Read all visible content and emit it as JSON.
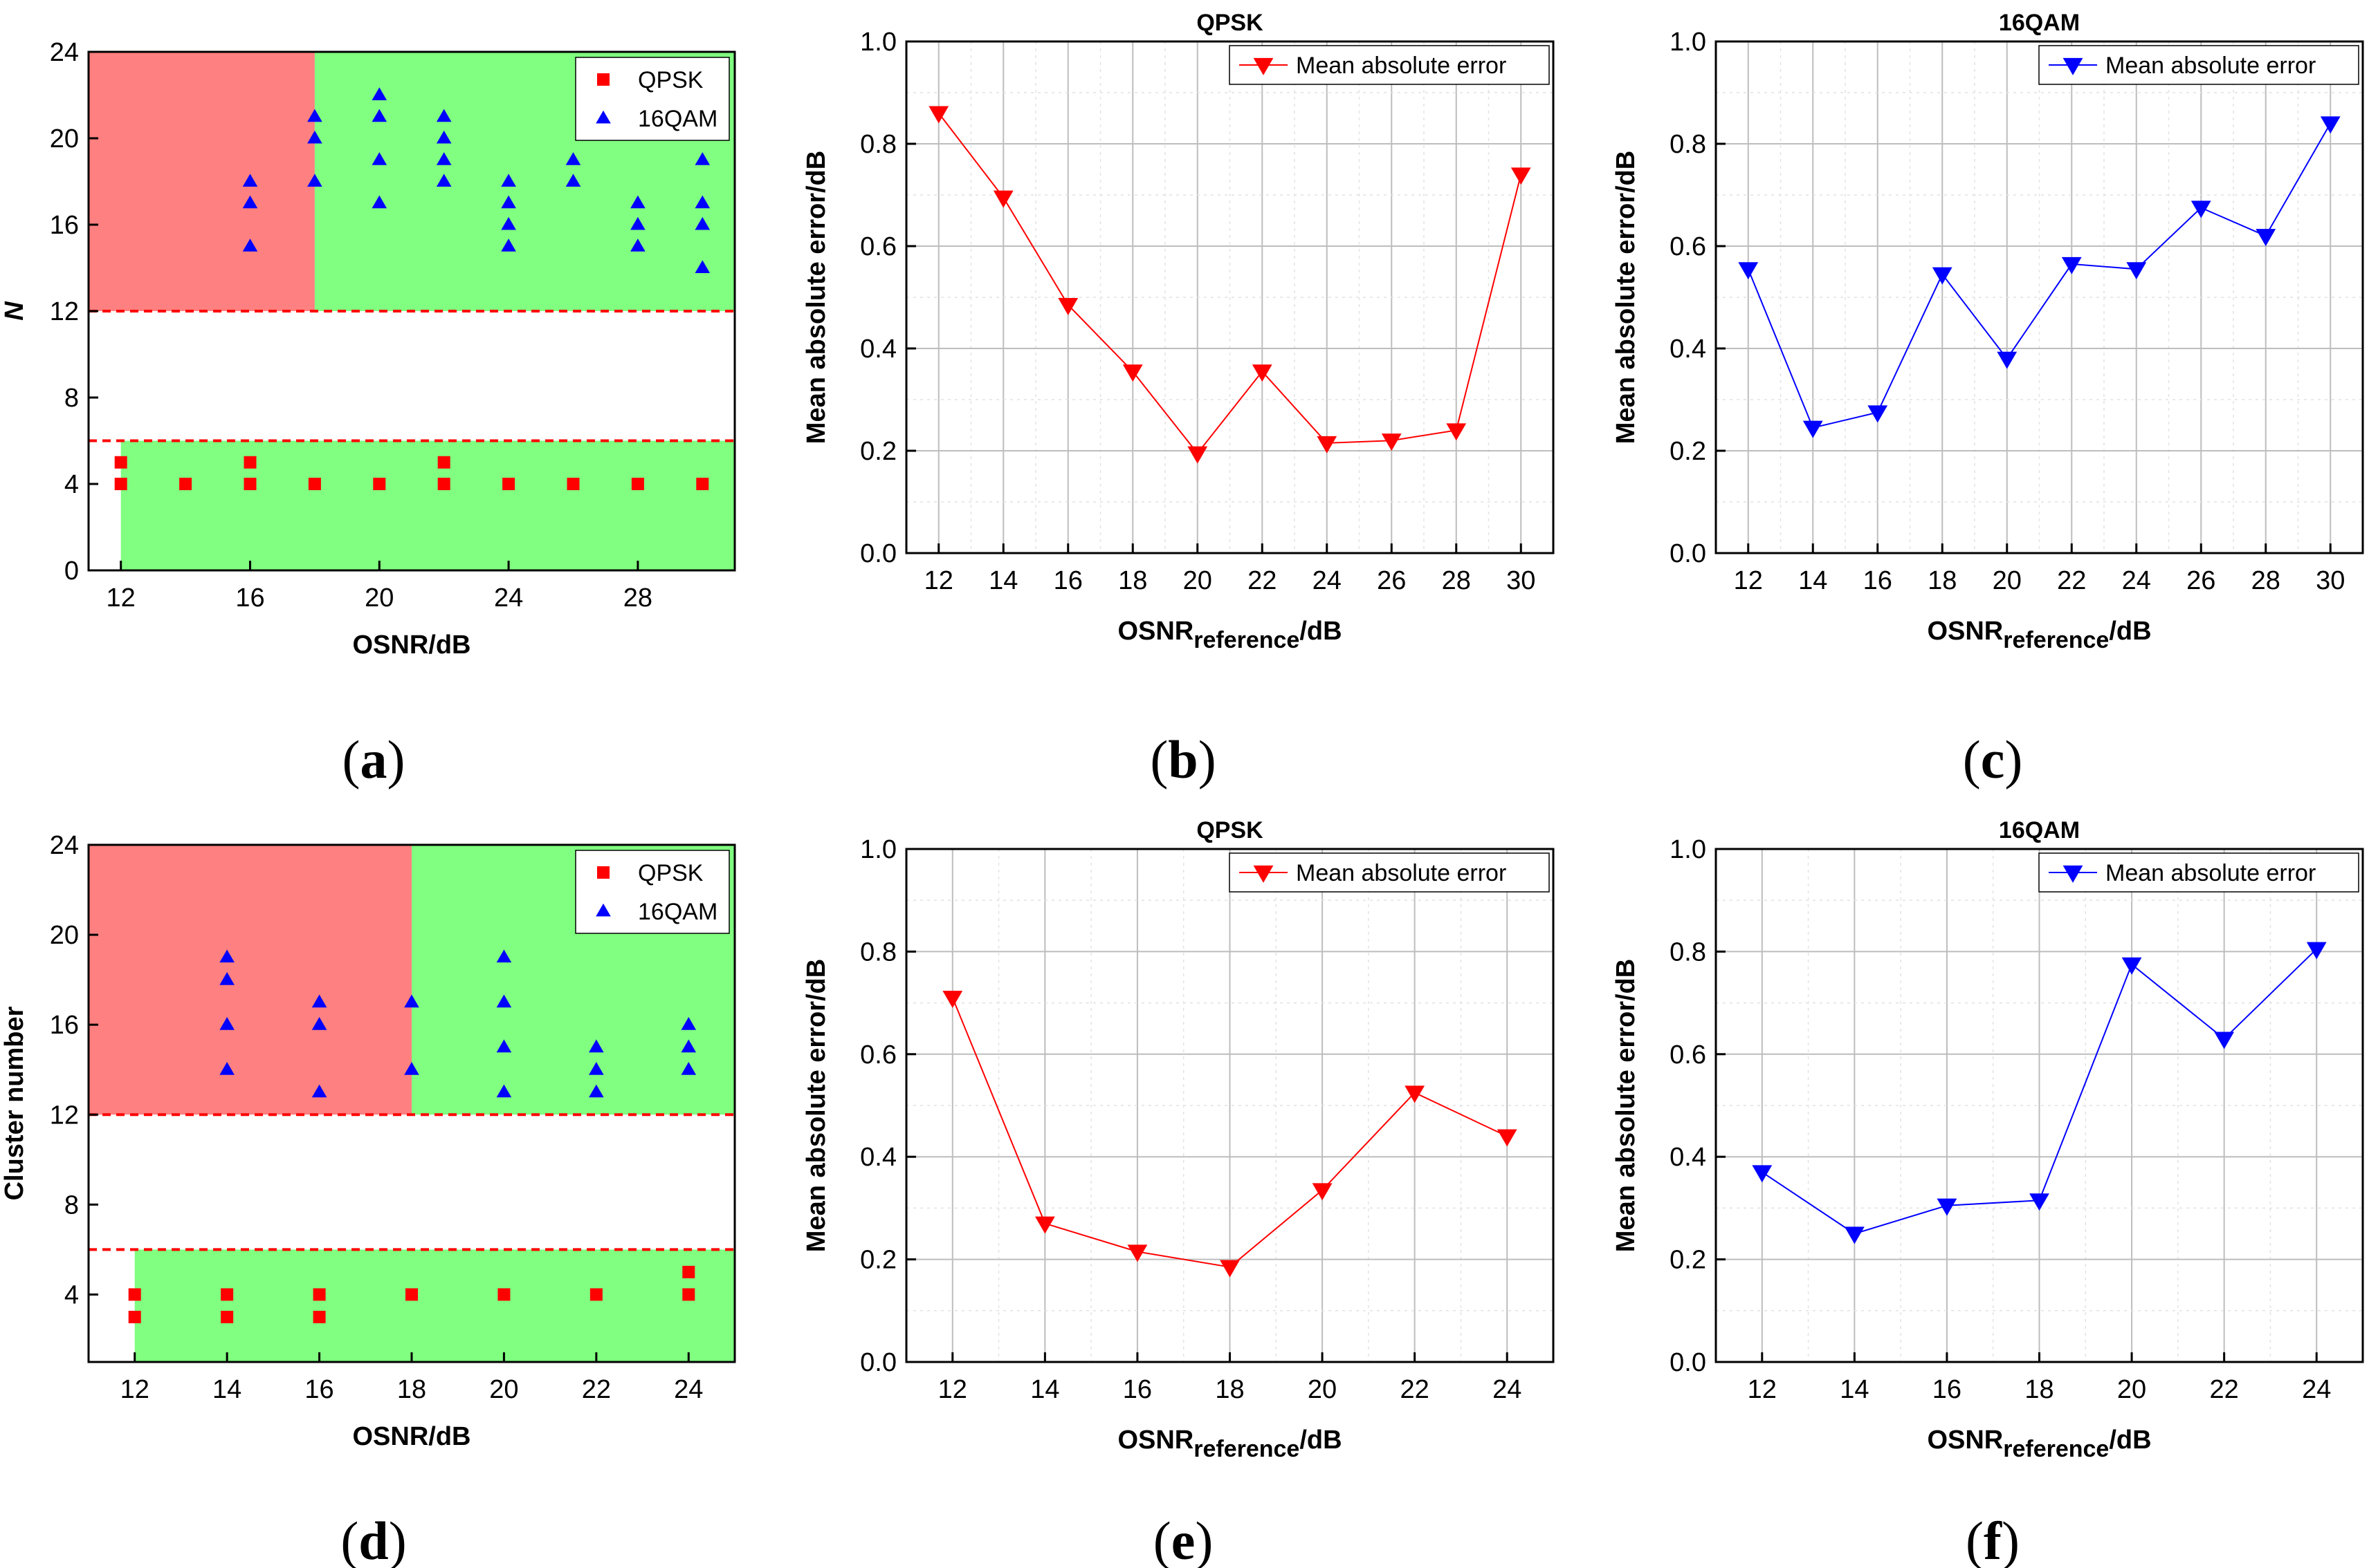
{
  "chart_data": [
    {
      "id": "a",
      "type": "scatter",
      "panel_label": "a",
      "xlabel": "OSNR/dB",
      "ylabel": "N",
      "xlim": [
        11,
        31
      ],
      "ylim": [
        0,
        24
      ],
      "xticks": [
        12,
        16,
        20,
        24,
        28
      ],
      "yticks": [
        0,
        4,
        8,
        12,
        16,
        20,
        24
      ],
      "legend_position": "top-right",
      "regions": [
        {
          "color": "#ff8080",
          "x": [
            11,
            18
          ],
          "y": [
            12,
            24
          ]
        },
        {
          "color": "#80ff80",
          "x": [
            18,
            31
          ],
          "y": [
            12,
            24
          ]
        },
        {
          "color": "#80ff80",
          "x": [
            12,
            31
          ],
          "y": [
            0,
            6
          ]
        }
      ],
      "hlines": [
        12,
        6
      ],
      "series": [
        {
          "name": "QPSK",
          "marker": "square",
          "color": "#ff0000",
          "points": [
            [
              12,
              5
            ],
            [
              12,
              4
            ],
            [
              14,
              4
            ],
            [
              16,
              5
            ],
            [
              16,
              4
            ],
            [
              18,
              4
            ],
            [
              20,
              4
            ],
            [
              22,
              5
            ],
            [
              22,
              4
            ],
            [
              24,
              4
            ],
            [
              26,
              4
            ],
            [
              28,
              4
            ],
            [
              30,
              4
            ]
          ]
        },
        {
          "name": "16QAM",
          "marker": "triangle-up",
          "color": "#0000ff",
          "points": [
            [
              16,
              18
            ],
            [
              16,
              17
            ],
            [
              16,
              15
            ],
            [
              18,
              21
            ],
            [
              18,
              20
            ],
            [
              18,
              18
            ],
            [
              20,
              22
            ],
            [
              20,
              21
            ],
            [
              20,
              19
            ],
            [
              20,
              17
            ],
            [
              22,
              21
            ],
            [
              22,
              20
            ],
            [
              22,
              19
            ],
            [
              22,
              18
            ],
            [
              24,
              18
            ],
            [
              24,
              17
            ],
            [
              24,
              16
            ],
            [
              24,
              15
            ],
            [
              26,
              19
            ],
            [
              26,
              18
            ],
            [
              28,
              17
            ],
            [
              28,
              16
            ],
            [
              28,
              15
            ],
            [
              30,
              19
            ],
            [
              30,
              17
            ],
            [
              30,
              16
            ],
            [
              30,
              14
            ]
          ]
        }
      ]
    },
    {
      "id": "b",
      "type": "line",
      "panel_label": "b",
      "title": "QPSK",
      "xlabel_main": "OSNR",
      "xlabel_sub": "reference",
      "xlabel_tail": "/dB",
      "ylabel": "Mean absolute error/dB",
      "xlim": [
        11,
        31
      ],
      "ylim": [
        0,
        1
      ],
      "xticks": [
        12,
        14,
        16,
        18,
        20,
        22,
        24,
        26,
        28,
        30
      ],
      "yticks": [
        0.0,
        0.2,
        0.4,
        0.6,
        0.8,
        1.0
      ],
      "yticks_text": [
        "0.0",
        "0.2",
        "0.4",
        "0.6",
        "0.8",
        "1.0"
      ],
      "grid": true,
      "legend_position": "top-right",
      "series": [
        {
          "name": "Mean absolute error",
          "marker": "triangle-down",
          "color": "#ff0000",
          "x": [
            12,
            14,
            16,
            18,
            20,
            22,
            24,
            26,
            28,
            30
          ],
          "values": [
            0.86,
            0.695,
            0.485,
            0.355,
            0.195,
            0.355,
            0.215,
            0.22,
            0.24,
            0.74
          ]
        }
      ]
    },
    {
      "id": "c",
      "type": "line",
      "panel_label": "c",
      "title": "16QAM",
      "xlabel_main": "OSNR",
      "xlabel_sub": "reference",
      "xlabel_tail": "/dB",
      "ylabel": "Mean absolute error/dB",
      "xlim": [
        11,
        31
      ],
      "ylim": [
        0,
        1
      ],
      "xticks": [
        12,
        14,
        16,
        18,
        20,
        22,
        24,
        26,
        28,
        30
      ],
      "yticks": [
        0.0,
        0.2,
        0.4,
        0.6,
        0.8,
        1.0
      ],
      "yticks_text": [
        "0.0",
        "0.2",
        "0.4",
        "0.6",
        "0.8",
        "1.0"
      ],
      "grid": true,
      "legend_position": "top-right",
      "series": [
        {
          "name": "Mean absolute error",
          "marker": "triangle-down",
          "color": "#0000ff",
          "x": [
            12,
            14,
            16,
            18,
            20,
            22,
            24,
            26,
            28,
            30
          ],
          "values": [
            0.555,
            0.245,
            0.275,
            0.545,
            0.38,
            0.565,
            0.555,
            0.675,
            0.62,
            0.84
          ]
        }
      ]
    },
    {
      "id": "d",
      "type": "scatter",
      "panel_label": "d",
      "xlabel": "OSNR/dB",
      "ylabel": "Cluster number",
      "xlim": [
        11,
        25
      ],
      "ylim": [
        1,
        24
      ],
      "xticks": [
        12,
        14,
        16,
        18,
        20,
        22,
        24
      ],
      "yticks": [
        4,
        8,
        12,
        16,
        20,
        24
      ],
      "legend_position": "top-right",
      "regions": [
        {
          "color": "#ff8080",
          "x": [
            11,
            18
          ],
          "y": [
            12,
            24
          ]
        },
        {
          "color": "#80ff80",
          "x": [
            18,
            25
          ],
          "y": [
            12,
            24
          ]
        },
        {
          "color": "#80ff80",
          "x": [
            12,
            25
          ],
          "y": [
            1,
            6
          ]
        }
      ],
      "hlines": [
        12,
        6
      ],
      "series": [
        {
          "name": "QPSK",
          "marker": "square",
          "color": "#ff0000",
          "points": [
            [
              12,
              4
            ],
            [
              12,
              3
            ],
            [
              14,
              4
            ],
            [
              14,
              3
            ],
            [
              16,
              4
            ],
            [
              16,
              3
            ],
            [
              18,
              4
            ],
            [
              20,
              4
            ],
            [
              22,
              4
            ],
            [
              24,
              5
            ],
            [
              24,
              4
            ]
          ]
        },
        {
          "name": "16QAM",
          "marker": "triangle-up",
          "color": "#0000ff",
          "points": [
            [
              14,
              19
            ],
            [
              14,
              18
            ],
            [
              14,
              16
            ],
            [
              14,
              14
            ],
            [
              16,
              17
            ],
            [
              16,
              16
            ],
            [
              16,
              13
            ],
            [
              18,
              17
            ],
            [
              18,
              14
            ],
            [
              20,
              19
            ],
            [
              20,
              17
            ],
            [
              20,
              15
            ],
            [
              20,
              13
            ],
            [
              22,
              15
            ],
            [
              22,
              14
            ],
            [
              22,
              13
            ],
            [
              24,
              16
            ],
            [
              24,
              15
            ],
            [
              24,
              14
            ]
          ]
        }
      ]
    },
    {
      "id": "e",
      "type": "line",
      "panel_label": "e",
      "title": "QPSK",
      "xlabel_main": "OSNR",
      "xlabel_sub": "reference",
      "xlabel_tail": "/dB",
      "ylabel": "Mean absolute error/dB",
      "xlim": [
        11,
        25
      ],
      "ylim": [
        0,
        1
      ],
      "xticks": [
        12,
        14,
        16,
        18,
        20,
        22,
        24
      ],
      "yticks": [
        0.0,
        0.2,
        0.4,
        0.6,
        0.8,
        1.0
      ],
      "yticks_text": [
        "0.0",
        "0.2",
        "0.4",
        "0.6",
        "0.8",
        "1.0"
      ],
      "grid": true,
      "legend_position": "top-right",
      "series": [
        {
          "name": "Mean absolute error",
          "marker": "triangle-down",
          "color": "#ff0000",
          "x": [
            12,
            14,
            16,
            18,
            20,
            22,
            24
          ],
          "values": [
            0.71,
            0.27,
            0.215,
            0.185,
            0.335,
            0.525,
            0.44
          ]
        }
      ]
    },
    {
      "id": "f",
      "type": "line",
      "panel_label": "f",
      "title": "16QAM",
      "xlabel_main": "OSNR",
      "xlabel_sub": "reference",
      "xlabel_tail": "/dB",
      "ylabel": "Mean absolute error/dB",
      "xlim": [
        11,
        25
      ],
      "ylim": [
        0,
        1
      ],
      "xticks": [
        12,
        14,
        16,
        18,
        20,
        22,
        24
      ],
      "yticks": [
        0.0,
        0.2,
        0.4,
        0.6,
        0.8,
        1.0
      ],
      "yticks_text": [
        "0.0",
        "0.2",
        "0.4",
        "0.6",
        "0.8",
        "1.0"
      ],
      "grid": true,
      "legend_position": "top-right",
      "series": [
        {
          "name": "Mean absolute error",
          "marker": "triangle-down",
          "color": "#0000ff",
          "x": [
            12,
            14,
            16,
            18,
            20,
            22,
            24
          ],
          "values": [
            0.37,
            0.25,
            0.305,
            0.315,
            0.775,
            0.63,
            0.805
          ]
        }
      ]
    }
  ]
}
